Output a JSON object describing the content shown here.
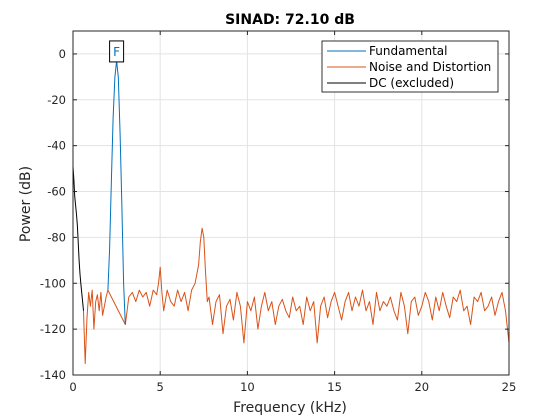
{
  "chart_data": {
    "type": "line",
    "title": "SINAD:  72.10 dB",
    "xlabel": "Frequency (kHz)",
    "ylabel": "Power (dB)",
    "xlim": [
      0,
      25
    ],
    "ylim": [
      -140,
      10
    ],
    "xticks": [
      0,
      5,
      10,
      15,
      20,
      25
    ],
    "yticks": [
      0,
      -20,
      -40,
      -60,
      -80,
      -100,
      -120,
      -140
    ],
    "grid": true,
    "legend_position": "top-right",
    "colors": {
      "fundamental": "#0072BD",
      "noise": "#D95319",
      "dc": "#000000",
      "grid": "#e3e3e3",
      "axis": "#262626"
    },
    "fundamental_marker": {
      "label": "F",
      "x": 2.5,
      "y": 0
    },
    "series": [
      {
        "name": "Fundamental",
        "x": [
          2.0,
          2.1,
          2.2,
          2.3,
          2.4,
          2.5,
          2.6,
          2.7,
          2.8,
          2.9,
          3.0
        ],
        "y": [
          -103,
          -85,
          -55,
          -28,
          -10,
          -3,
          -10,
          -35,
          -65,
          -100,
          -118
        ]
      },
      {
        "name": "Noise and Distortion",
        "x": [
          0.6,
          0.7,
          0.8,
          0.9,
          1.0,
          1.1,
          1.2,
          1.3,
          1.4,
          1.5,
          1.6,
          1.7,
          1.8,
          1.9,
          2.0,
          3.0,
          3.1,
          3.2,
          3.4,
          3.6,
          3.8,
          4.0,
          4.2,
          4.4,
          4.6,
          4.8,
          4.9,
          5.0,
          5.1,
          5.2,
          5.4,
          5.6,
          5.8,
          6.0,
          6.2,
          6.4,
          6.6,
          6.8,
          7.0,
          7.2,
          7.3,
          7.4,
          7.5,
          7.6,
          7.7,
          7.8,
          8.0,
          8.2,
          8.4,
          8.6,
          8.8,
          9.0,
          9.2,
          9.4,
          9.6,
          9.8,
          10.0,
          10.2,
          10.4,
          10.6,
          10.8,
          11.0,
          11.2,
          11.4,
          11.6,
          11.8,
          12.0,
          12.2,
          12.4,
          12.6,
          12.8,
          13.0,
          13.2,
          13.4,
          13.6,
          13.8,
          14.0,
          14.2,
          14.4,
          14.6,
          14.8,
          15.0,
          15.2,
          15.4,
          15.6,
          15.8,
          16.0,
          16.2,
          16.4,
          16.6,
          16.8,
          17.0,
          17.2,
          17.4,
          17.6,
          17.8,
          18.0,
          18.2,
          18.4,
          18.6,
          18.8,
          19.0,
          19.2,
          19.4,
          19.6,
          19.8,
          20.0,
          20.2,
          20.4,
          20.6,
          20.8,
          21.0,
          21.2,
          21.4,
          21.6,
          21.8,
          22.0,
          22.2,
          22.4,
          22.6,
          22.8,
          23.0,
          23.2,
          23.4,
          23.6,
          23.8,
          24.0,
          24.2,
          24.4,
          24.6,
          24.8,
          25.0
        ],
        "y": [
          -112,
          -135,
          -115,
          -104,
          -110,
          -103,
          -120,
          -108,
          -105,
          -112,
          -104,
          -114,
          -110,
          -106,
          -103,
          -118,
          -112,
          -106,
          -104,
          -108,
          -103,
          -106,
          -104,
          -110,
          -103,
          -105,
          -100,
          -93,
          -104,
          -112,
          -103,
          -108,
          -110,
          -103,
          -108,
          -104,
          -112,
          -103,
          -100,
          -92,
          -82,
          -76,
          -80,
          -95,
          -108,
          -106,
          -118,
          -108,
          -105,
          -122,
          -110,
          -107,
          -116,
          -104,
          -110,
          -126,
          -108,
          -112,
          -106,
          -120,
          -110,
          -104,
          -112,
          -108,
          -118,
          -110,
          -107,
          -112,
          -115,
          -106,
          -112,
          -110,
          -118,
          -106,
          -112,
          -108,
          -126,
          -110,
          -106,
          -115,
          -108,
          -104,
          -110,
          -116,
          -108,
          -104,
          -112,
          -106,
          -110,
          -103,
          -112,
          -108,
          -118,
          -104,
          -112,
          -108,
          -110,
          -106,
          -112,
          -116,
          -104,
          -110,
          -122,
          -108,
          -106,
          -114,
          -110,
          -104,
          -108,
          -116,
          -106,
          -112,
          -104,
          -110,
          -115,
          -106,
          -108,
          -103,
          -112,
          -110,
          -118,
          -106,
          -108,
          -104,
          -112,
          -110,
          -106,
          -114,
          -108,
          -104,
          -112,
          -126
        ]
      },
      {
        "name": "DC (excluded)",
        "x": [
          0.0,
          0.05,
          0.1,
          0.15,
          0.2,
          0.25,
          0.3,
          0.35,
          0.4,
          0.45,
          0.5,
          0.55,
          0.6
        ],
        "y": [
          -49,
          -55,
          -62,
          -66,
          -70,
          -75,
          -82,
          -90,
          -96,
          -100,
          -104,
          -108,
          -112
        ]
      }
    ]
  }
}
